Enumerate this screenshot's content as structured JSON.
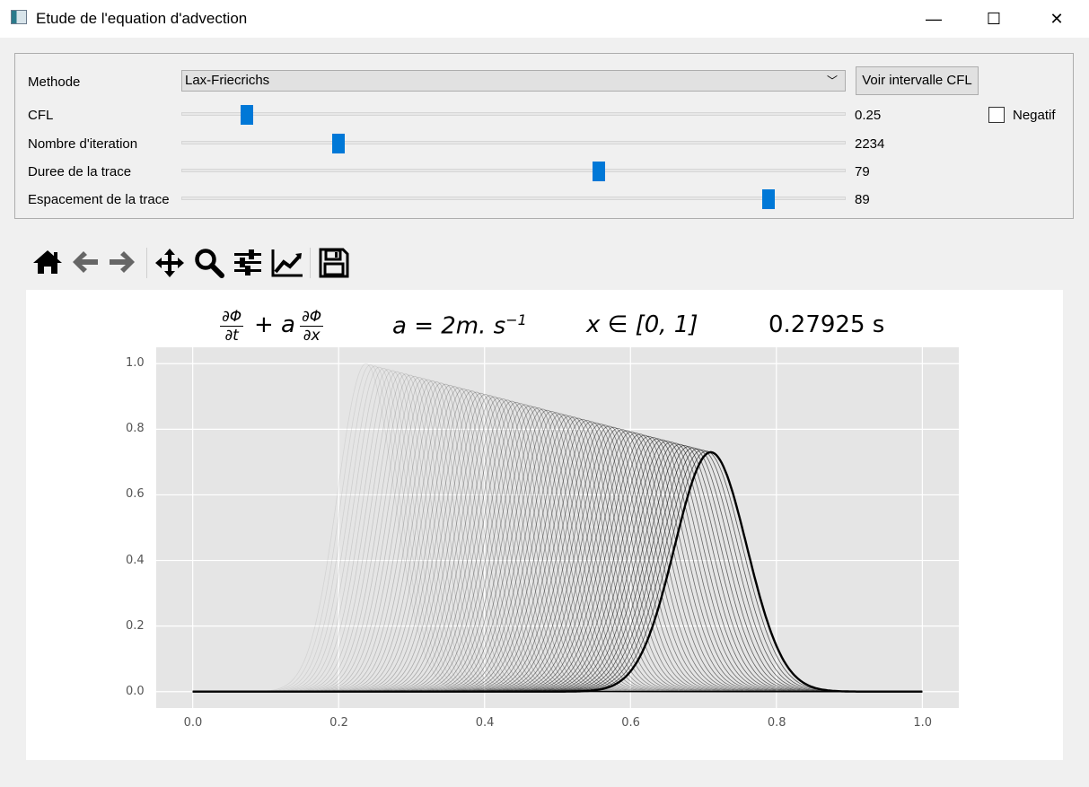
{
  "window": {
    "title": "Etude de l'equation d'advection",
    "minimize_glyph": "—",
    "maximize_glyph": "☐",
    "close_glyph": "✕"
  },
  "controls": {
    "method_label": "Methode",
    "method_value": "Lax-Friecrichs",
    "cfl_button_label": "Voir intervalle CFL",
    "negatif_label": "Negatif",
    "negatif_checked": false,
    "sliders": [
      {
        "label": "CFL",
        "value": "0.25",
        "level": 0.09
      },
      {
        "label": "Nombre d'iteration",
        "value": "2234",
        "level": 0.23
      },
      {
        "label": "Duree de la trace",
        "value": "79",
        "level": 0.63
      },
      {
        "label": "Espacement de la trace",
        "value": "89",
        "level": 0.89
      }
    ]
  },
  "toolbar": {
    "items": [
      "home-icon",
      "back-icon",
      "forward-icon",
      "pan-icon",
      "zoom-icon",
      "configure-icon",
      "axes-icon",
      "save-icon"
    ],
    "colors": {
      "active": "#000000",
      "disabled": "#666666"
    }
  },
  "plot_title": {
    "pde_num1": "∂Φ",
    "pde_den1": "∂t",
    "pde_plus": "+ a",
    "pde_num2": "∂Φ",
    "pde_den2": "∂x",
    "speed": "a = 2m. s",
    "speed_exp": "−1",
    "domain": "x ∈ [0, 1]",
    "time": "0.27925 s"
  },
  "chart_data": {
    "type": "line",
    "xlim": [
      -0.05,
      1.05
    ],
    "ylim": [
      -0.05,
      1.05
    ],
    "xticks": [
      "0.0",
      "0.2",
      "0.4",
      "0.6",
      "0.8",
      "1.0"
    ],
    "yticks": [
      "0.0",
      "0.2",
      "0.4",
      "0.6",
      "0.8",
      "1.0"
    ],
    "grid": true,
    "background": "#e5e5e5",
    "trace": {
      "count": 79,
      "center_start": 0.2375,
      "center_end": 0.71,
      "peak_start": 1.0,
      "peak_end": 0.73,
      "width_start": 0.055,
      "width_end": 0.07
    },
    "current": {
      "center": 0.71,
      "peak": 0.73,
      "width": 0.07
    },
    "line_color": "#000000"
  }
}
